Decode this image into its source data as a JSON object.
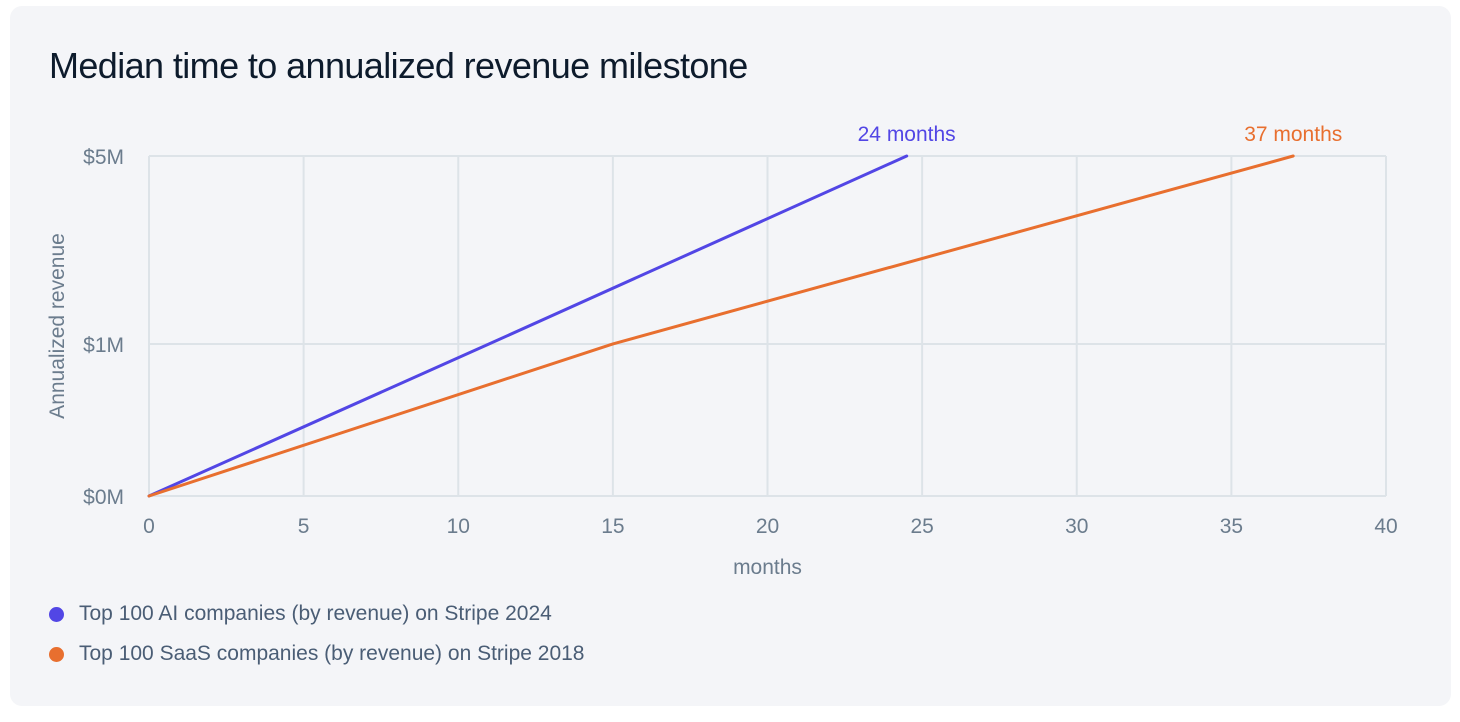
{
  "colors": {
    "background": "#f4f5f8",
    "grid": "#dde3e8",
    "axis_text": "#6b7c8d",
    "title": "#0d1b2c",
    "ai": "#5246e5",
    "saas": "#e86f2f"
  },
  "chart_data": {
    "type": "line",
    "title": "Median time to annualized revenue milestone",
    "xlabel": "months",
    "ylabel": "Annualized revenue",
    "xlim": [
      0,
      40
    ],
    "x_ticks": [
      0,
      5,
      10,
      15,
      20,
      25,
      30,
      35,
      40
    ],
    "y_ticks": [
      {
        "value": 0,
        "label": "$0M"
      },
      {
        "value": 1,
        "label": "$1M"
      },
      {
        "value": 5,
        "label": "$5M"
      }
    ],
    "y_scale": "sqrt",
    "ylim": [
      0,
      5
    ],
    "grid": true,
    "legend_position": "bottom-left",
    "series": [
      {
        "name": "Top 100 AI companies (by revenue) on Stripe 2024",
        "color_key": "ai",
        "x": [
          0,
          11,
          24.5
        ],
        "y": [
          0,
          1,
          5
        ],
        "end_label": "24 months"
      },
      {
        "name": "Top 100 SaaS companies (by revenue) on Stripe 2018",
        "color_key": "saas",
        "x": [
          0,
          15,
          37
        ],
        "y": [
          0,
          1,
          5
        ],
        "end_label": "37 months"
      }
    ]
  }
}
